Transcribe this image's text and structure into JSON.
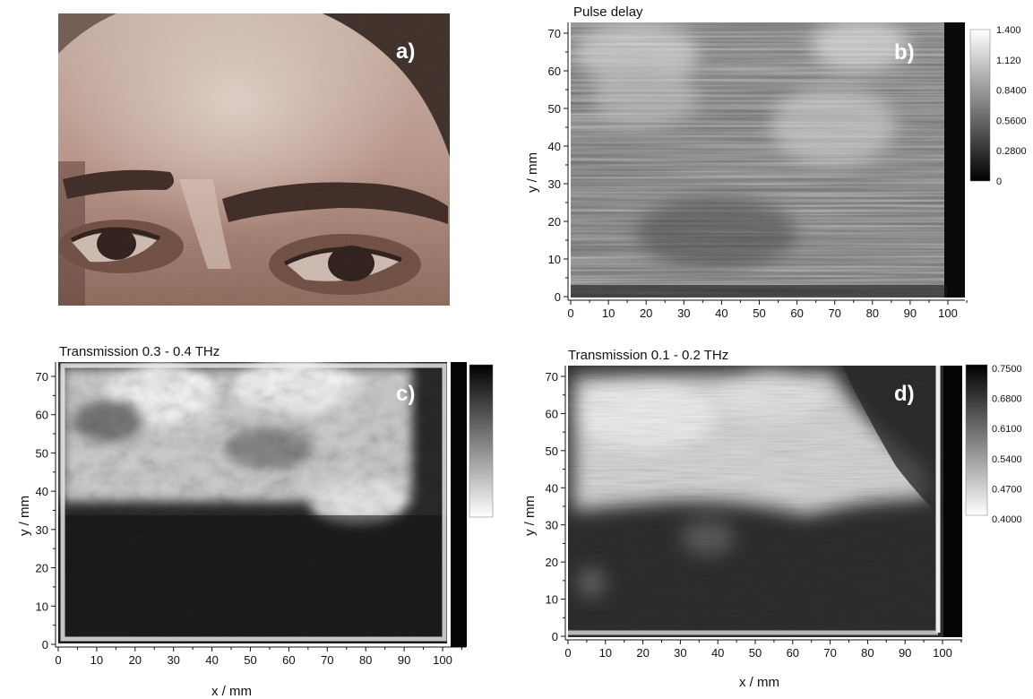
{
  "figure": {
    "panels": [
      {
        "id": "a",
        "letter": "a)",
        "kind": "photo",
        "title": "",
        "description_icon": "painting-detail-eyes"
      },
      {
        "id": "b",
        "letter": "b)",
        "kind": "heatmap",
        "title": "Pulse delay"
      },
      {
        "id": "c",
        "letter": "c)",
        "kind": "heatmap",
        "title": "Transmission 0.3 - 0.4 THz"
      },
      {
        "id": "d",
        "letter": "d)",
        "kind": "heatmap",
        "title": "Transmission 0.1 - 0.2 THz"
      }
    ]
  },
  "chart_data": [
    {
      "type": "heatmap",
      "panel": "b",
      "title": "Pulse delay",
      "xlabel": "",
      "ylabel": "y / mm",
      "xlim": [
        0,
        105
      ],
      "ylim": [
        0,
        74
      ],
      "xticks": [
        "0",
        "10",
        "20",
        "30",
        "40",
        "50",
        "60",
        "70",
        "80",
        "90",
        "100"
      ],
      "yticks": [
        "0",
        "10",
        "20",
        "30",
        "40",
        "50",
        "60",
        "70"
      ],
      "colorbar": {
        "ticks": [
          "1.400",
          "1.120",
          "0.8400",
          "0.5600",
          "0.2800",
          "0"
        ],
        "colors": [
          "#ffffff",
          "#000000"
        ]
      }
    },
    {
      "type": "heatmap",
      "panel": "c",
      "title": "Transmission 0.3 - 0.4 THz",
      "xlabel": "x / mm",
      "ylabel": "y / mm",
      "xlim": [
        0,
        105
      ],
      "ylim": [
        0,
        74
      ],
      "xticks": [
        "0",
        "10",
        "20",
        "30",
        "40",
        "50",
        "60",
        "70",
        "80",
        "90",
        "100"
      ],
      "yticks": [
        "0",
        "10",
        "20",
        "30",
        "40",
        "50",
        "60",
        "70"
      ],
      "colorbar": {
        "ticks": [],
        "colors": [
          "#000000",
          "#ffffff"
        ]
      }
    },
    {
      "type": "heatmap",
      "panel": "d",
      "title": "Transmission 0.1 - 0.2 THz",
      "xlabel": "x / mm",
      "ylabel": "y / mm",
      "xlim": [
        0,
        105
      ],
      "ylim": [
        0,
        74
      ],
      "xticks": [
        "0",
        "10",
        "20",
        "30",
        "40",
        "50",
        "60",
        "70",
        "80",
        "90",
        "100"
      ],
      "yticks": [
        "0",
        "10",
        "20",
        "30",
        "40",
        "50",
        "60",
        "70"
      ],
      "colorbar": {
        "ticks": [
          "0.7500",
          "0.6800",
          "0.6100",
          "0.5400",
          "0.4700",
          "0.4000"
        ],
        "colors": [
          "#000000",
          "#ffffff"
        ]
      }
    }
  ]
}
